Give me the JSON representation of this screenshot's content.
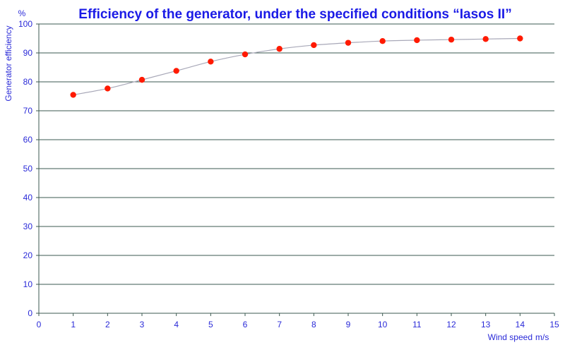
{
  "chart_data": {
    "type": "line",
    "title": "Efficiency of the generator, under the specified conditions “Iasos II”",
    "xlabel": "Wind speed",
    "xunit": "m/s",
    "ylabel": "Generator efficiency",
    "yunit": "%",
    "xlim": [
      0,
      15
    ],
    "ylim": [
      0,
      100
    ],
    "xticks": [
      "0",
      "1",
      "2",
      "3",
      "4",
      "5",
      "6",
      "7",
      "8",
      "9",
      "10",
      "11",
      "12",
      "13",
      "14",
      "15"
    ],
    "yticks": [
      "0",
      "10",
      "20",
      "30",
      "40",
      "50",
      "60",
      "70",
      "80",
      "90",
      "100"
    ],
    "grid": "horizontal",
    "series": [
      {
        "x": [
          1,
          2,
          3,
          4,
          5,
          6,
          7,
          8,
          9,
          10,
          11,
          12,
          13,
          14
        ],
        "y": [
          75.5,
          77.7,
          80.7,
          83.8,
          87.0,
          89.5,
          91.4,
          92.7,
          93.5,
          94.1,
          94.4,
          94.6,
          94.8,
          95.0
        ]
      }
    ],
    "colors": {
      "text": "#2a2ad8",
      "title": "#1a1ae6",
      "grid": "#3b5a50",
      "marker": "#ff1a00",
      "line": "#a8a8b8"
    }
  }
}
